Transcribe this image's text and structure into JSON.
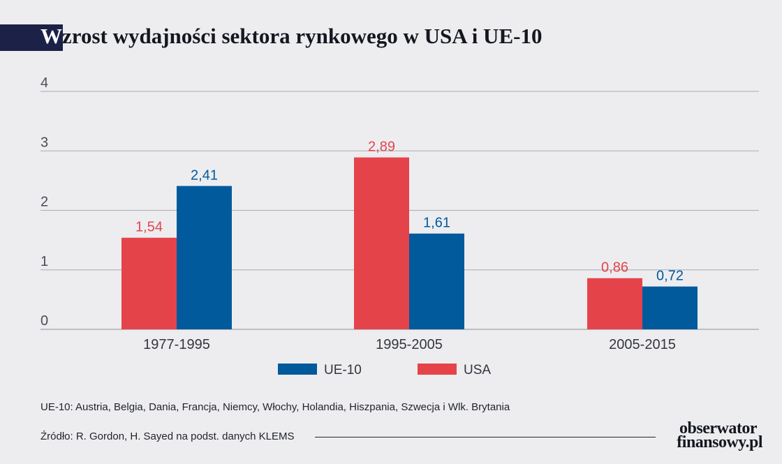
{
  "title_first": "W",
  "title_rest": "zrost wydajności sektora rynkowego w USA i UE-10",
  "chart_data": {
    "type": "bar",
    "categories": [
      "1977-1995",
      "1995-2005",
      "2005-2015"
    ],
    "series": [
      {
        "name": "USA",
        "color": "#e5434a",
        "values": [
          1.54,
          2.89,
          0.86
        ],
        "labels": [
          "1,54",
          "2,89",
          "0,86"
        ]
      },
      {
        "name": "UE-10",
        "color": "#005a9c",
        "values": [
          2.41,
          1.61,
          0.72
        ],
        "labels": [
          "2,41",
          "1,61",
          "0,72"
        ]
      }
    ],
    "ylim": [
      0,
      4
    ],
    "yticks": [
      0,
      1,
      2,
      3,
      4
    ],
    "grid": true,
    "legend": [
      {
        "name": "UE-10",
        "color": "#005a9c"
      },
      {
        "name": "USA",
        "color": "#e5434a"
      }
    ],
    "legend_position": "bottom-center"
  },
  "footnote": "UE-10: Austria, Belgia, Dania, Francja, Niemcy, Włochy, Holandia, Hiszpania, Szwecja i Wlk. Brytania",
  "source": "Źródło: R. Gordon, H. Sayed na podst. danych KLEMS",
  "logo": {
    "line1": "obserwator",
    "line2": "finansowy.pl"
  }
}
